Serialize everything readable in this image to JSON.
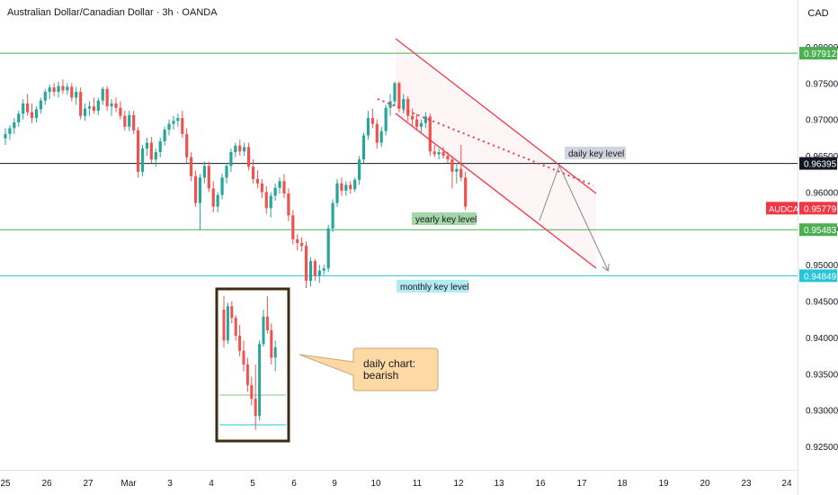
{
  "header": {
    "title": "Australian Dollar/Canadian Dollar · 3h · OANDA",
    "currency": "CAD"
  },
  "chart_data": {
    "type": "candlestick",
    "symbol": "AUDCAD",
    "ylim": [
      0.921,
      0.981
    ],
    "y_ticks": [
      "0.98000",
      "0.97500",
      "0.97000",
      "0.96500",
      "0.96000",
      "0.95500",
      "0.95000",
      "0.94500",
      "0.94000",
      "0.93500",
      "0.93000",
      "0.92500"
    ],
    "x_ticks": [
      "25",
      "26",
      "27",
      "Mar",
      "3",
      "4",
      "5",
      "6",
      "9",
      "10",
      "11",
      "12",
      "13",
      "16",
      "17",
      "18",
      "19",
      "20",
      "23",
      "24"
    ],
    "colors": {
      "up": "#26a69a",
      "down": "#ef5350",
      "green_line": "#4caf50",
      "cyan_line": "#26c6da",
      "channel": "#f23645",
      "black_line": "#131722"
    },
    "levels": [
      {
        "price": 0.97912,
        "label": "0.97912",
        "color": "#4caf50"
      },
      {
        "price": 0.96395,
        "label": "0.96395",
        "color": "#131722",
        "text": "daily key level"
      },
      {
        "price": 0.95779,
        "label": "0.95779",
        "color": "#f23645",
        "symbol_tag": "AUDCAD"
      },
      {
        "price": 0.95483,
        "label": "0.95483",
        "color": "#4caf50",
        "text": "yearly key level"
      },
      {
        "price": 0.94849,
        "label": "0.94849",
        "color": "#26c6da",
        "text": "monthly key level"
      }
    ],
    "annotation": {
      "text": "daily chart:\nbearish"
    },
    "candles": [
      {
        "o": 0.9674,
        "h": 0.9688,
        "l": 0.9665,
        "c": 0.968
      },
      {
        "o": 0.968,
        "h": 0.9692,
        "l": 0.9672,
        "c": 0.9688
      },
      {
        "o": 0.9688,
        "h": 0.9702,
        "l": 0.968,
        "c": 0.9696
      },
      {
        "o": 0.9696,
        "h": 0.9712,
        "l": 0.969,
        "c": 0.9708
      },
      {
        "o": 0.9708,
        "h": 0.9728,
        "l": 0.97,
        "c": 0.9722
      },
      {
        "o": 0.9722,
        "h": 0.9735,
        "l": 0.9705,
        "c": 0.971
      },
      {
        "o": 0.971,
        "h": 0.9722,
        "l": 0.9695,
        "c": 0.9702
      },
      {
        "o": 0.9702,
        "h": 0.9718,
        "l": 0.9696,
        "c": 0.9714
      },
      {
        "o": 0.9714,
        "h": 0.973,
        "l": 0.9708,
        "c": 0.9726
      },
      {
        "o": 0.9726,
        "h": 0.9742,
        "l": 0.972,
        "c": 0.9738
      },
      {
        "o": 0.9738,
        "h": 0.9748,
        "l": 0.9728,
        "c": 0.9744
      },
      {
        "o": 0.9744,
        "h": 0.975,
        "l": 0.9732,
        "c": 0.9738
      },
      {
        "o": 0.9738,
        "h": 0.9752,
        "l": 0.973,
        "c": 0.9746
      },
      {
        "o": 0.9746,
        "h": 0.9755,
        "l": 0.9735,
        "c": 0.974
      },
      {
        "o": 0.974,
        "h": 0.975,
        "l": 0.9734,
        "c": 0.9745
      },
      {
        "o": 0.9745,
        "h": 0.975,
        "l": 0.9725,
        "c": 0.973
      },
      {
        "o": 0.973,
        "h": 0.9745,
        "l": 0.972,
        "c": 0.9738
      },
      {
        "o": 0.9738,
        "h": 0.9744,
        "l": 0.97,
        "c": 0.9705
      },
      {
        "o": 0.9705,
        "h": 0.9722,
        "l": 0.9698,
        "c": 0.9715
      },
      {
        "o": 0.9715,
        "h": 0.9725,
        "l": 0.9705,
        "c": 0.9718
      },
      {
        "o": 0.9718,
        "h": 0.973,
        "l": 0.9708,
        "c": 0.9712
      },
      {
        "o": 0.9712,
        "h": 0.973,
        "l": 0.9706,
        "c": 0.9726
      },
      {
        "o": 0.9726,
        "h": 0.9745,
        "l": 0.972,
        "c": 0.9742
      },
      {
        "o": 0.9742,
        "h": 0.9746,
        "l": 0.9712,
        "c": 0.9718
      },
      {
        "o": 0.9718,
        "h": 0.9728,
        "l": 0.9705,
        "c": 0.9722
      },
      {
        "o": 0.9722,
        "h": 0.973,
        "l": 0.971,
        "c": 0.9716
      },
      {
        "o": 0.9716,
        "h": 0.9725,
        "l": 0.97,
        "c": 0.9705
      },
      {
        "o": 0.9705,
        "h": 0.9712,
        "l": 0.9685,
        "c": 0.969
      },
      {
        "o": 0.969,
        "h": 0.9712,
        "l": 0.9684,
        "c": 0.9706
      },
      {
        "o": 0.9706,
        "h": 0.9712,
        "l": 0.968,
        "c": 0.9685
      },
      {
        "o": 0.9685,
        "h": 0.969,
        "l": 0.962,
        "c": 0.9628
      },
      {
        "o": 0.9628,
        "h": 0.9665,
        "l": 0.9622,
        "c": 0.966
      },
      {
        "o": 0.966,
        "h": 0.9675,
        "l": 0.965,
        "c": 0.9668
      },
      {
        "o": 0.9668,
        "h": 0.9676,
        "l": 0.964,
        "c": 0.9645
      },
      {
        "o": 0.9645,
        "h": 0.966,
        "l": 0.9635,
        "c": 0.9655
      },
      {
        "o": 0.9655,
        "h": 0.9675,
        "l": 0.9648,
        "c": 0.967
      },
      {
        "o": 0.967,
        "h": 0.969,
        "l": 0.9664,
        "c": 0.9686
      },
      {
        "o": 0.9686,
        "h": 0.97,
        "l": 0.9678,
        "c": 0.9694
      },
      {
        "o": 0.9694,
        "h": 0.9705,
        "l": 0.9686,
        "c": 0.9698
      },
      {
        "o": 0.9698,
        "h": 0.9708,
        "l": 0.969,
        "c": 0.9702
      },
      {
        "o": 0.9702,
        "h": 0.9712,
        "l": 0.9675,
        "c": 0.968
      },
      {
        "o": 0.968,
        "h": 0.9688,
        "l": 0.964,
        "c": 0.9648
      },
      {
        "o": 0.9648,
        "h": 0.9655,
        "l": 0.9615,
        "c": 0.9622
      },
      {
        "o": 0.9622,
        "h": 0.963,
        "l": 0.958,
        "c": 0.9585
      },
      {
        "o": 0.9585,
        "h": 0.9625,
        "l": 0.9548,
        "c": 0.962
      },
      {
        "o": 0.962,
        "h": 0.9642,
        "l": 0.9612,
        "c": 0.9636
      },
      {
        "o": 0.9636,
        "h": 0.9642,
        "l": 0.96,
        "c": 0.9605
      },
      {
        "o": 0.9605,
        "h": 0.9615,
        "l": 0.9572,
        "c": 0.958
      },
      {
        "o": 0.958,
        "h": 0.96,
        "l": 0.9572,
        "c": 0.9596
      },
      {
        "o": 0.9596,
        "h": 0.9625,
        "l": 0.959,
        "c": 0.962
      },
      {
        "o": 0.962,
        "h": 0.964,
        "l": 0.9612,
        "c": 0.9636
      },
      {
        "o": 0.9636,
        "h": 0.966,
        "l": 0.9628,
        "c": 0.9655
      },
      {
        "o": 0.9655,
        "h": 0.9668,
        "l": 0.9648,
        "c": 0.9664
      },
      {
        "o": 0.9664,
        "h": 0.9672,
        "l": 0.965,
        "c": 0.9656
      },
      {
        "o": 0.9656,
        "h": 0.9668,
        "l": 0.965,
        "c": 0.9662
      },
      {
        "o": 0.9662,
        "h": 0.9668,
        "l": 0.963,
        "c": 0.9635
      },
      {
        "o": 0.9635,
        "h": 0.9645,
        "l": 0.9612,
        "c": 0.9618
      },
      {
        "o": 0.9618,
        "h": 0.963,
        "l": 0.9605,
        "c": 0.9612
      },
      {
        "o": 0.9612,
        "h": 0.9618,
        "l": 0.9592,
        "c": 0.96
      },
      {
        "o": 0.96,
        "h": 0.9608,
        "l": 0.957,
        "c": 0.9578
      },
      {
        "o": 0.9578,
        "h": 0.96,
        "l": 0.9565,
        "c": 0.9595
      },
      {
        "o": 0.9595,
        "h": 0.9612,
        "l": 0.9588,
        "c": 0.9606
      },
      {
        "o": 0.9606,
        "h": 0.962,
        "l": 0.9598,
        "c": 0.9615
      },
      {
        "o": 0.9615,
        "h": 0.9625,
        "l": 0.9592,
        "c": 0.9598
      },
      {
        "o": 0.9598,
        "h": 0.9605,
        "l": 0.956,
        "c": 0.9568
      },
      {
        "o": 0.9568,
        "h": 0.9575,
        "l": 0.9528,
        "c": 0.9535
      },
      {
        "o": 0.9535,
        "h": 0.9542,
        "l": 0.952,
        "c": 0.953
      },
      {
        "o": 0.953,
        "h": 0.9538,
        "l": 0.9518,
        "c": 0.9526
      },
      {
        "o": 0.9526,
        "h": 0.9532,
        "l": 0.9468,
        "c": 0.9478
      },
      {
        "o": 0.9478,
        "h": 0.951,
        "l": 0.947,
        "c": 0.9505
      },
      {
        "o": 0.9505,
        "h": 0.9508,
        "l": 0.9478,
        "c": 0.9485
      },
      {
        "o": 0.9485,
        "h": 0.95,
        "l": 0.9475,
        "c": 0.9492
      },
      {
        "o": 0.9492,
        "h": 0.95,
        "l": 0.9486,
        "c": 0.9495
      },
      {
        "o": 0.9495,
        "h": 0.9555,
        "l": 0.949,
        "c": 0.955
      },
      {
        "o": 0.955,
        "h": 0.959,
        "l": 0.9545,
        "c": 0.9585
      },
      {
        "o": 0.9585,
        "h": 0.9618,
        "l": 0.958,
        "c": 0.9612
      },
      {
        "o": 0.9612,
        "h": 0.962,
        "l": 0.9595,
        "c": 0.9602
      },
      {
        "o": 0.9602,
        "h": 0.9615,
        "l": 0.9595,
        "c": 0.961
      },
      {
        "o": 0.961,
        "h": 0.9615,
        "l": 0.9598,
        "c": 0.9604
      },
      {
        "o": 0.9604,
        "h": 0.962,
        "l": 0.96,
        "c": 0.9617
      },
      {
        "o": 0.9617,
        "h": 0.965,
        "l": 0.961,
        "c": 0.9645
      },
      {
        "o": 0.9645,
        "h": 0.9682,
        "l": 0.964,
        "c": 0.9678
      },
      {
        "o": 0.9678,
        "h": 0.9712,
        "l": 0.9672,
        "c": 0.9702
      },
      {
        "o": 0.9702,
        "h": 0.9715,
        "l": 0.9688,
        "c": 0.9694
      },
      {
        "o": 0.9694,
        "h": 0.97,
        "l": 0.966,
        "c": 0.9668
      },
      {
        "o": 0.9668,
        "h": 0.969,
        "l": 0.9662,
        "c": 0.9684
      },
      {
        "o": 0.9684,
        "h": 0.972,
        "l": 0.9678,
        "c": 0.9716
      },
      {
        "o": 0.9716,
        "h": 0.9735,
        "l": 0.9705,
        "c": 0.9725
      },
      {
        "o": 0.9725,
        "h": 0.9752,
        "l": 0.9718,
        "c": 0.975
      },
      {
        "o": 0.975,
        "h": 0.9752,
        "l": 0.971,
        "c": 0.9715
      },
      {
        "o": 0.9715,
        "h": 0.9735,
        "l": 0.9708,
        "c": 0.9728
      },
      {
        "o": 0.9728,
        "h": 0.9732,
        "l": 0.9698,
        "c": 0.9705
      },
      {
        "o": 0.9705,
        "h": 0.9715,
        "l": 0.969,
        "c": 0.97
      },
      {
        "o": 0.97,
        "h": 0.9708,
        "l": 0.9685,
        "c": 0.969
      },
      {
        "o": 0.969,
        "h": 0.97,
        "l": 0.9682,
        "c": 0.9695
      },
      {
        "o": 0.9695,
        "h": 0.971,
        "l": 0.9688,
        "c": 0.9704
      },
      {
        "o": 0.9704,
        "h": 0.9708,
        "l": 0.965,
        "c": 0.9656
      },
      {
        "o": 0.9656,
        "h": 0.9665,
        "l": 0.9648,
        "c": 0.9652
      },
      {
        "o": 0.9652,
        "h": 0.966,
        "l": 0.9645,
        "c": 0.9655
      },
      {
        "o": 0.9655,
        "h": 0.9662,
        "l": 0.9646,
        "c": 0.965
      },
      {
        "o": 0.965,
        "h": 0.9655,
        "l": 0.964,
        "c": 0.9645
      },
      {
        "o": 0.9645,
        "h": 0.965,
        "l": 0.9605,
        "c": 0.9628
      },
      {
        "o": 0.9628,
        "h": 0.964,
        "l": 0.9612,
        "c": 0.9632
      },
      {
        "o": 0.9632,
        "h": 0.9665,
        "l": 0.9615,
        "c": 0.962
      },
      {
        "o": 0.962,
        "h": 0.9628,
        "l": 0.9575,
        "c": 0.958
      }
    ],
    "inset_candles": [
      {
        "o": 0.944,
        "h": 0.946,
        "l": 0.9385,
        "c": 0.9395
      },
      {
        "o": 0.9395,
        "h": 0.945,
        "l": 0.939,
        "c": 0.9445
      },
      {
        "o": 0.9445,
        "h": 0.9452,
        "l": 0.942,
        "c": 0.9428
      },
      {
        "o": 0.9428,
        "h": 0.9432,
        "l": 0.9395,
        "c": 0.9402
      },
      {
        "o": 0.9402,
        "h": 0.9418,
        "l": 0.9372,
        "c": 0.938
      },
      {
        "o": 0.938,
        "h": 0.9395,
        "l": 0.935,
        "c": 0.936
      },
      {
        "o": 0.936,
        "h": 0.937,
        "l": 0.932,
        "c": 0.933
      },
      {
        "o": 0.933,
        "h": 0.9342,
        "l": 0.93,
        "c": 0.931
      },
      {
        "o": 0.931,
        "h": 0.936,
        "l": 0.9265,
        "c": 0.9285
      },
      {
        "o": 0.9285,
        "h": 0.9395,
        "l": 0.9278,
        "c": 0.939
      },
      {
        "o": 0.939,
        "h": 0.944,
        "l": 0.9386,
        "c": 0.943
      },
      {
        "o": 0.943,
        "h": 0.946,
        "l": 0.9405,
        "c": 0.941
      },
      {
        "o": 0.941,
        "h": 0.942,
        "l": 0.936,
        "c": 0.937
      },
      {
        "o": 0.937,
        "h": 0.9395,
        "l": 0.935,
        "c": 0.9385
      }
    ]
  }
}
